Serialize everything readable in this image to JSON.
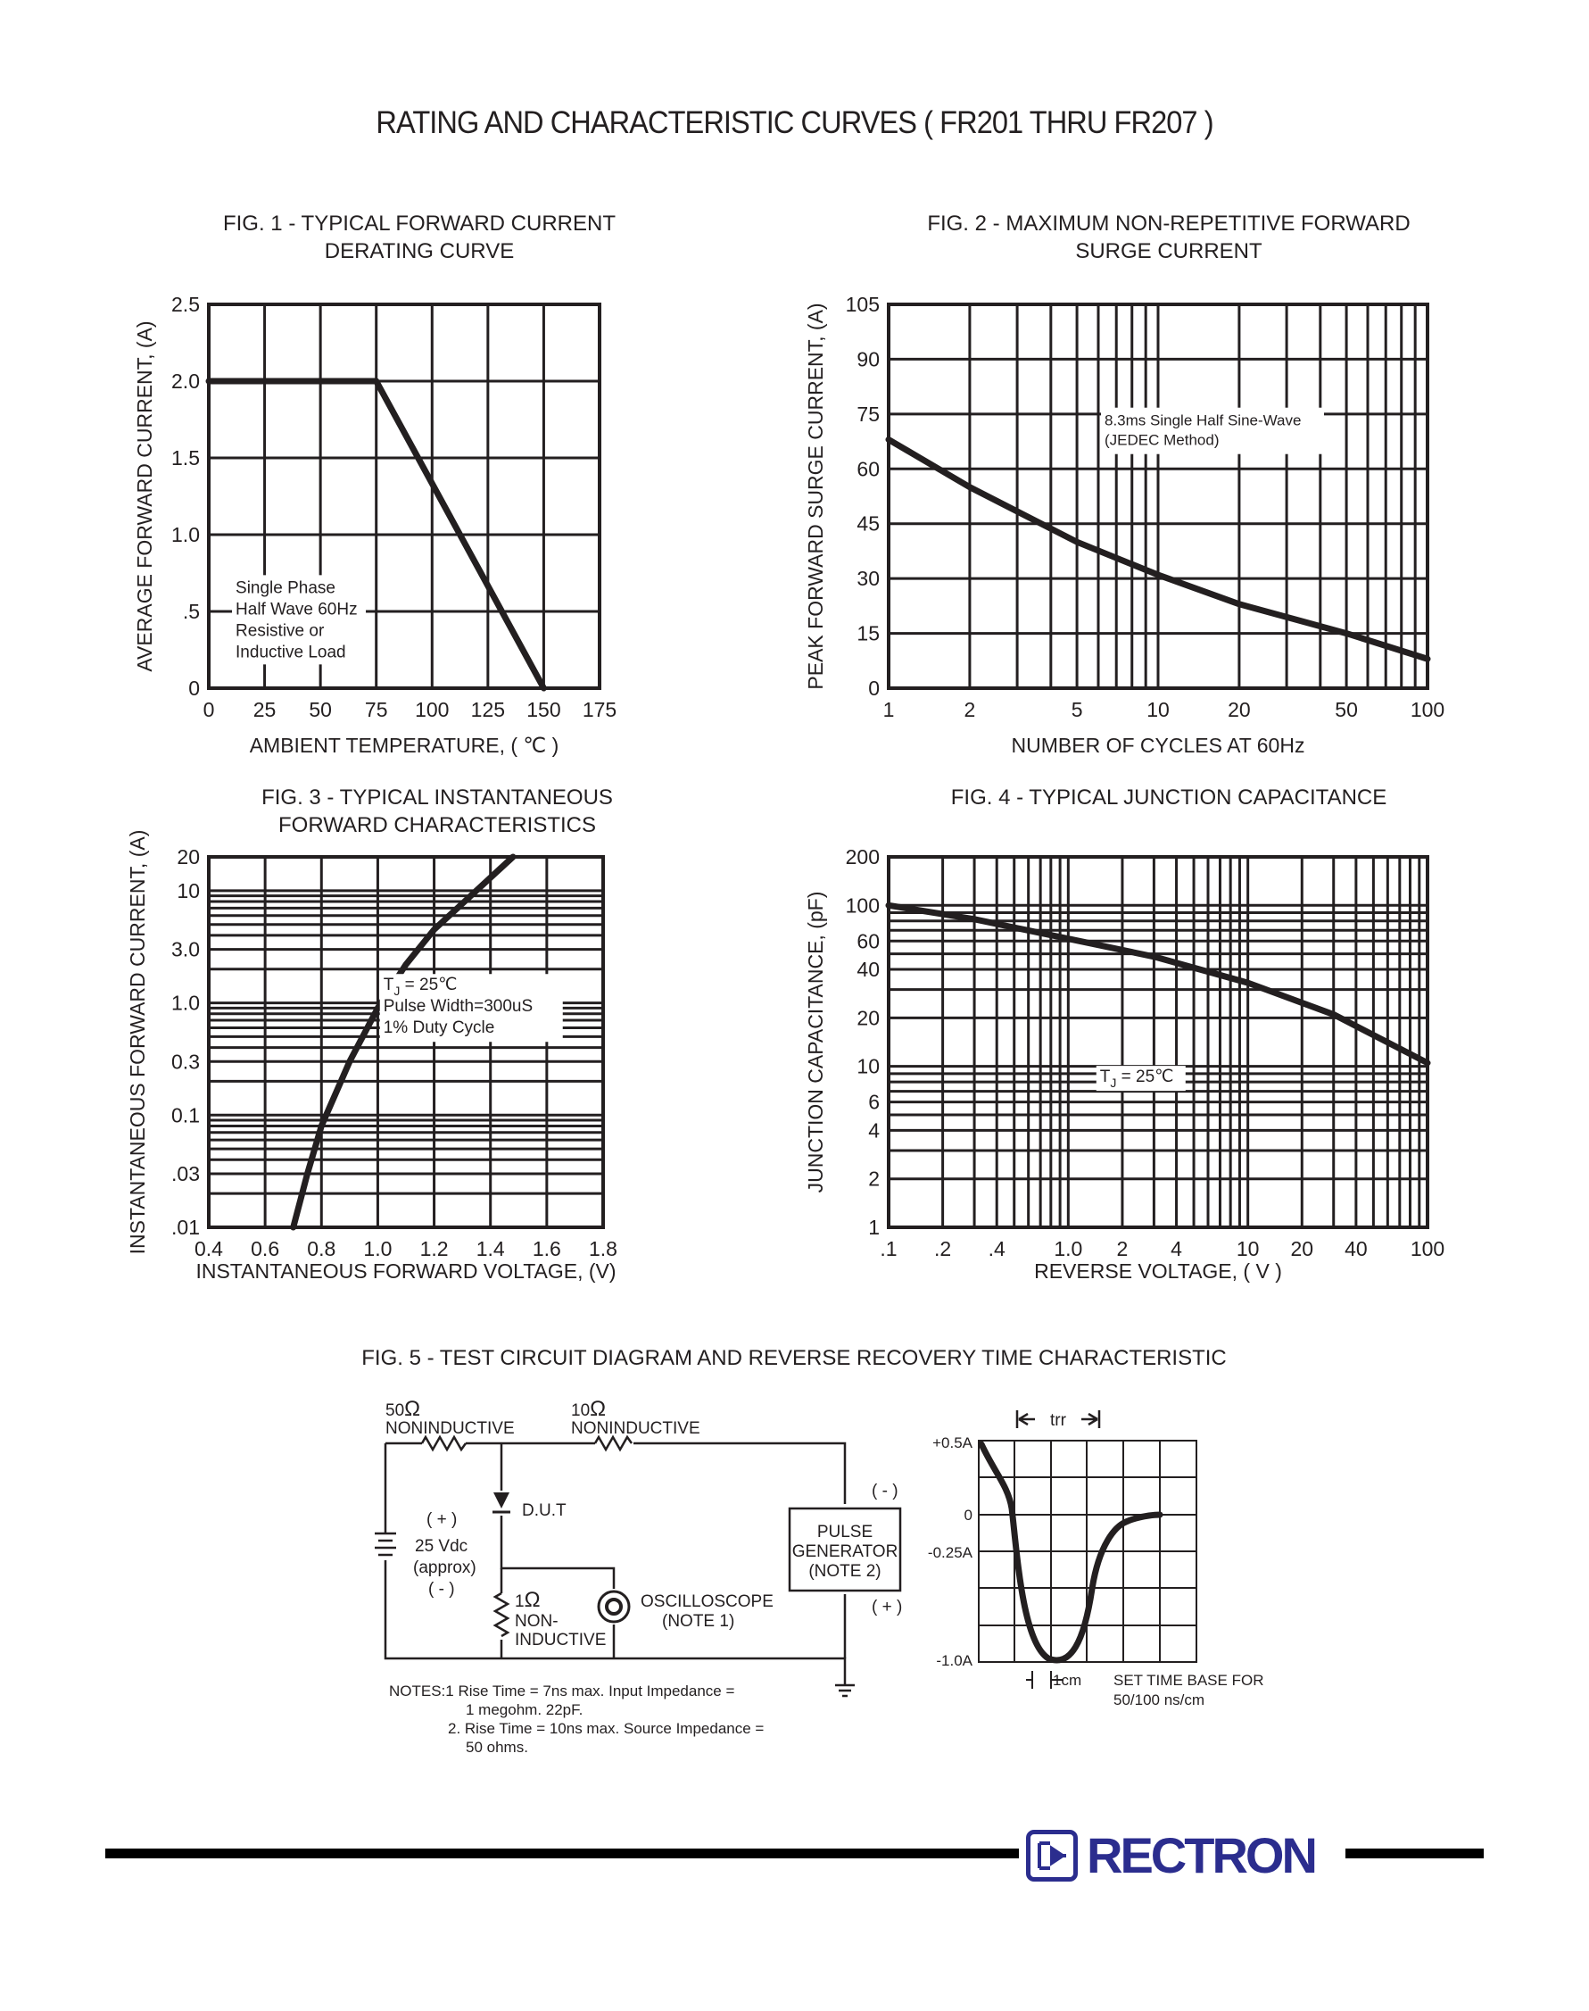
{
  "title": "RATING AND CHARACTERISTIC CURVES ( FR201 THRU FR207 )",
  "colors": {
    "ink": "#231f20",
    "brand": "#2b2d8e"
  },
  "brand": "RECTRON",
  "chart_data": [
    {
      "id": "fig1",
      "type": "line",
      "title_line1": "FIG. 1 - TYPICAL FORWARD CURRENT",
      "title_line2": "DERATING CURVE",
      "xlabel": "AMBIENT TEMPERATURE, ( ℃ )",
      "ylabel": "AVERAGE FORWARD CURRENT, (A)",
      "xlim": [
        0,
        175
      ],
      "ylim": [
        0,
        2.5
      ],
      "x_ticks": [
        0,
        25,
        50,
        75,
        100,
        125,
        150,
        175
      ],
      "x_tick_labels": [
        "0",
        "25",
        "50",
        "75",
        "100",
        "125",
        "150",
        "175"
      ],
      "y_ticks": [
        0,
        0.5,
        1.0,
        1.5,
        2.0,
        2.5
      ],
      "y_tick_labels": [
        "0",
        ".5",
        "1.0",
        "1.5",
        "2.0",
        "2.5"
      ],
      "x": [
        0,
        75,
        150
      ],
      "y": [
        2.0,
        2.0,
        0
      ],
      "annotation": [
        "Single Phase",
        "Half Wave 60Hz",
        "Resistive or",
        "Inductive Load"
      ]
    },
    {
      "id": "fig2",
      "type": "line",
      "title_line1": "FIG. 2 - MAXIMUM NON-REPETITIVE FORWARD",
      "title_line2": "SURGE CURRENT",
      "xlabel": "NUMBER OF CYCLES AT 60Hz",
      "ylabel": "PEAK FORWARD SURGE CURRENT, (A)",
      "xscale": "log",
      "xlim": [
        1,
        100
      ],
      "ylim": [
        0,
        105
      ],
      "x_tick_labels": [
        "1",
        "2",
        "5",
        "10",
        "20",
        "50",
        "100"
      ],
      "x_ticks": [
        1,
        2,
        5,
        10,
        20,
        50,
        100
      ],
      "y_ticks": [
        0,
        15,
        30,
        45,
        60,
        75,
        90,
        105
      ],
      "y_tick_labels": [
        "0",
        "15",
        "30",
        "45",
        "60",
        "75",
        "90",
        "105"
      ],
      "x": [
        1,
        2,
        5,
        10,
        20,
        50,
        100
      ],
      "y": [
        68,
        55,
        40,
        31,
        23,
        15,
        8
      ],
      "annotation": [
        "8.3ms Single Half Sine-Wave",
        "(JEDEC Method)"
      ]
    },
    {
      "id": "fig3",
      "type": "line",
      "title_line1": "FIG. 3 - TYPICAL INSTANTANEOUS",
      "title_line2": "FORWARD CHARACTERISTICS",
      "xlabel": "INSTANTANEOUS FORWARD VOLTAGE, (V)",
      "ylabel": "INSTANTANEOUS FORWARD CURRENT, (A)",
      "yscale": "log",
      "xlim": [
        0.4,
        1.8
      ],
      "ylim": [
        0.01,
        20
      ],
      "x_ticks": [
        0.4,
        0.6,
        0.8,
        1.0,
        1.2,
        1.4,
        1.6,
        1.8
      ],
      "x_tick_labels": [
        "0.4",
        "0.6",
        "0.8",
        "1.0",
        "1.2",
        "1.4",
        "1.6",
        "1.8"
      ],
      "y_ticks": [
        0.01,
        0.03,
        0.1,
        0.3,
        1.0,
        3.0,
        10,
        20
      ],
      "y_tick_labels": [
        ".01",
        ".03",
        "0.1",
        "0.3",
        "1.0",
        "3.0",
        "10",
        "20"
      ],
      "x": [
        0.7,
        0.75,
        0.8,
        0.9,
        1.0,
        1.1,
        1.2,
        1.35,
        1.48
      ],
      "y": [
        0.01,
        0.03,
        0.08,
        0.3,
        0.9,
        2.2,
        4.5,
        10,
        20
      ],
      "annotation_tj": "T",
      "annotation_tj_sub": "J",
      "annotation_tj_val": " = 25℃",
      "annotation": [
        "Pulse Width=300uS",
        "1% Duty Cycle"
      ]
    },
    {
      "id": "fig4",
      "type": "line",
      "title_line1": "FIG. 4 - TYPICAL JUNCTION CAPACITANCE",
      "xlabel": "REVERSE VOLTAGE, ( V )",
      "ylabel": "JUNCTION CAPACITANCE, (pF)",
      "xscale": "log",
      "yscale": "log",
      "xlim": [
        0.1,
        100
      ],
      "ylim": [
        1,
        200
      ],
      "x_ticks": [
        0.1,
        0.2,
        0.4,
        1.0,
        2,
        4,
        10,
        20,
        40,
        100
      ],
      "x_tick_labels": [
        ".1",
        ".2",
        ".4",
        "1.0",
        "2",
        "4",
        "10",
        "20",
        "40",
        "100"
      ],
      "y_ticks": [
        1,
        2,
        4,
        6,
        10,
        20,
        40,
        60,
        100,
        200
      ],
      "y_tick_labels": [
        "1",
        "2",
        "4",
        "6",
        "10",
        "20",
        "40",
        "60",
        "100",
        "200"
      ],
      "x": [
        0.1,
        0.3,
        1,
        3,
        10,
        30,
        100
      ],
      "y": [
        100,
        82,
        62,
        48,
        33,
        21,
        10.5
      ],
      "annotation_tj": "T",
      "annotation_tj_sub": "J",
      "annotation_tj_val": " = 25℃"
    }
  ],
  "fig5": {
    "title": "FIG. 5 - TEST CIRCUIT DIAGRAM  AND REVERSE RECOVERY TIME CHARACTERISTIC",
    "r50_value": "50",
    "r10_value": "10",
    "r1_value": "1",
    "ohm": "Ω",
    "noninductive": "NONINDUCTIVE",
    "dut": "D.U.T",
    "supply_plus": "( + )",
    "supply_value": "25 Vdc",
    "supply_approx": "(approx)",
    "supply_minus": "( - )",
    "r1_line1": "NON-",
    "r1_line2": "INDUCTIVE",
    "scope_line1": "OSCILLOSCOPE",
    "scope_line2": "(NOTE 1)",
    "gen_line1": "PULSE",
    "gen_line2": "GENERATOR",
    "gen_line3": "(NOTE 2)",
    "gen_minus": "( - )",
    "gen_plus": "( + )",
    "notes": [
      "NOTES:1  Rise Time = 7ns max. Input Impedance =",
      "1 megohm. 22pF.",
      "2. Rise Time = 10ns max. Source Impedance =",
      "50 ohms."
    ],
    "trr_label": "trr",
    "y_labels": [
      "+0.5A",
      "0",
      "-0.25A",
      "-1.0A"
    ],
    "cm_label": "1cm",
    "timebase_line1": "SET TIME BASE FOR",
    "timebase_line2": "50/100 ns/cm"
  }
}
